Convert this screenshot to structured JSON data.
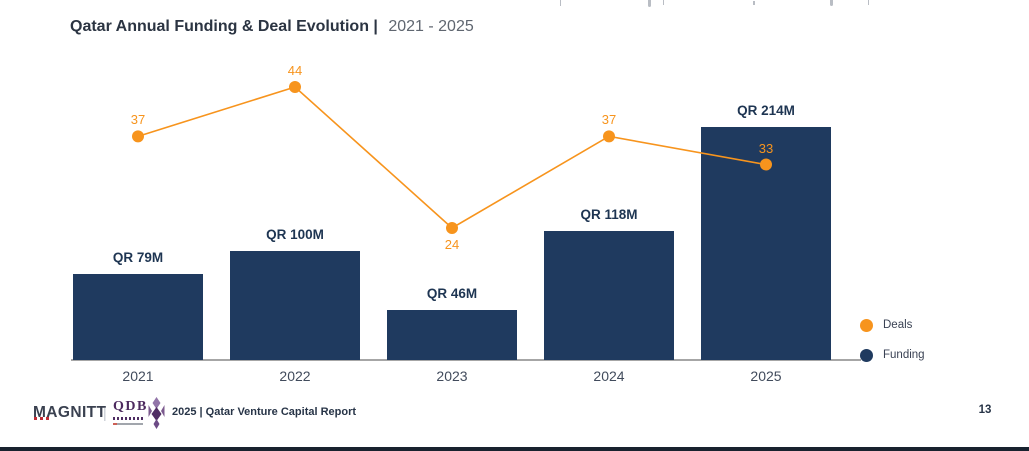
{
  "header": {
    "title_bold": "Qatar Annual Funding & Deal Evolution |",
    "title_period": "2021 - 2025"
  },
  "legend": {
    "items": [
      {
        "label": "Deals",
        "color": "#f7941d"
      },
      {
        "label": "Funding",
        "color": "#1f3a5f"
      }
    ]
  },
  "chart_data": {
    "type": "bar+line combo",
    "title": "Qatar Annual Funding & Deal Evolution | 2021 - 2025",
    "categories": [
      "2021",
      "2022",
      "2023",
      "2024",
      "2025"
    ],
    "series": [
      {
        "name": "Funding",
        "type": "bar",
        "unit": "QR millions",
        "values": [
          79,
          100,
          46,
          118,
          214
        ],
        "data_labels": [
          "QR 79M",
          "QR 100M",
          "QR 46M",
          "QR 118M",
          "QR 214M"
        ],
        "color": "#1f3a5f"
      },
      {
        "name": "Deals",
        "type": "line",
        "values": [
          37,
          44,
          24,
          37,
          33
        ],
        "color": "#f7941d",
        "label_positions": [
          "above",
          "above",
          "below",
          "above",
          "above"
        ]
      }
    ],
    "axes": {
      "y_axis": "hidden",
      "gridlines": false,
      "x_axis_line_color": "#a6a6a6"
    },
    "legend_position": "right"
  },
  "footer": {
    "magnitt_logo": "MAGNITT",
    "logo_divider": "|",
    "qdb_logo": "QDB",
    "report_label": "2025 | Qatar Venture Capital Report",
    "page_number": "13"
  }
}
